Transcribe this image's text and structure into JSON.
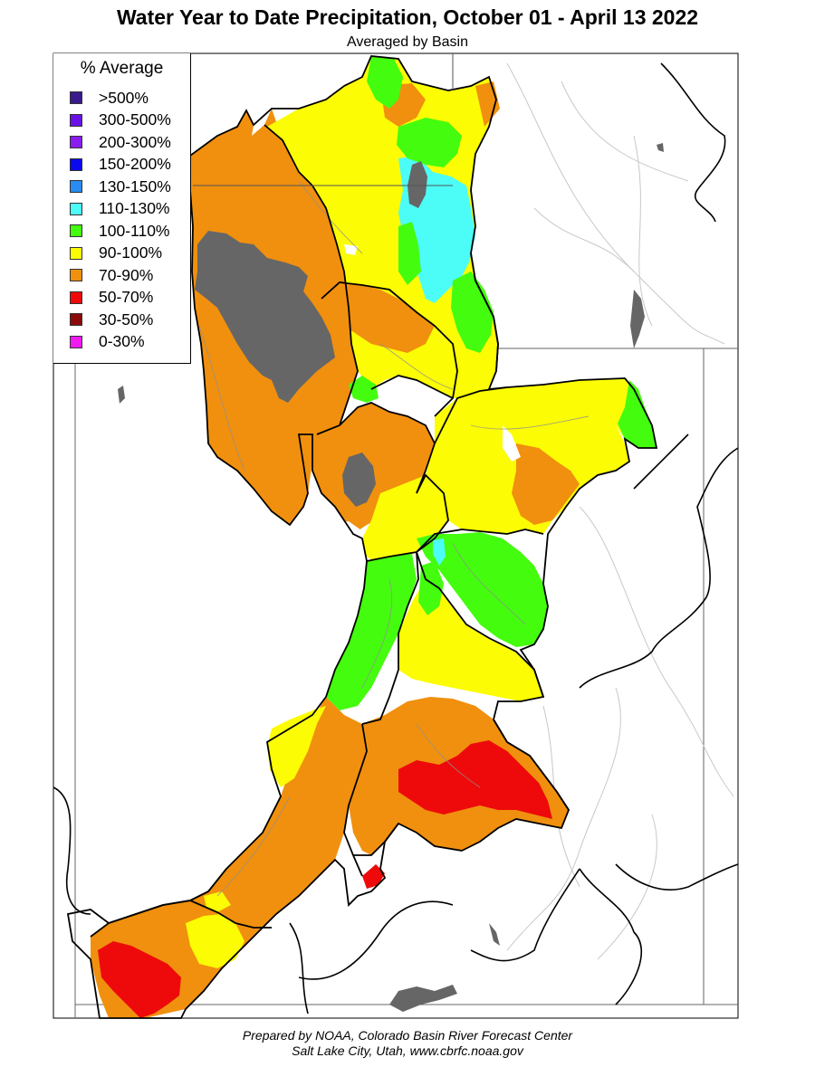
{
  "title": "Water Year to Date Precipitation, October 01  - April 13 2022",
  "subtitle": "Averaged by Basin",
  "legend": {
    "title": "% Average",
    "items": [
      {
        "label": ">500%",
        "color": "#3a1a8c"
      },
      {
        "label": "300-500%",
        "color": "#6a12e6"
      },
      {
        "label": "200-300%",
        "color": "#8a1cf2"
      },
      {
        "label": "150-200%",
        "color": "#0a0aee"
      },
      {
        "label": "130-150%",
        "color": "#2a8cf2"
      },
      {
        "label": "110-130%",
        "color": "#4cfcf6"
      },
      {
        "label": "100-110%",
        "color": "#44fc0e"
      },
      {
        "label": "90-100%",
        "color": "#fcfc04"
      },
      {
        "label": "70-90%",
        "color": "#f0900e"
      },
      {
        "label": "50-70%",
        "color": "#ee0a0a"
      },
      {
        "label": "30-50%",
        "color": "#8c0a0a"
      },
      {
        "label": "0-30%",
        "color": "#f21af2"
      }
    ]
  },
  "colors": {
    "lake": "#666666",
    "river": "#a0a0a0",
    "basin_border": "#000000"
  },
  "footer": {
    "line1": "Prepared by NOAA, Colorado Basin River Forecast Center",
    "line2": "Salt Lake City, Utah, www.cbrfc.noaa.gov"
  }
}
